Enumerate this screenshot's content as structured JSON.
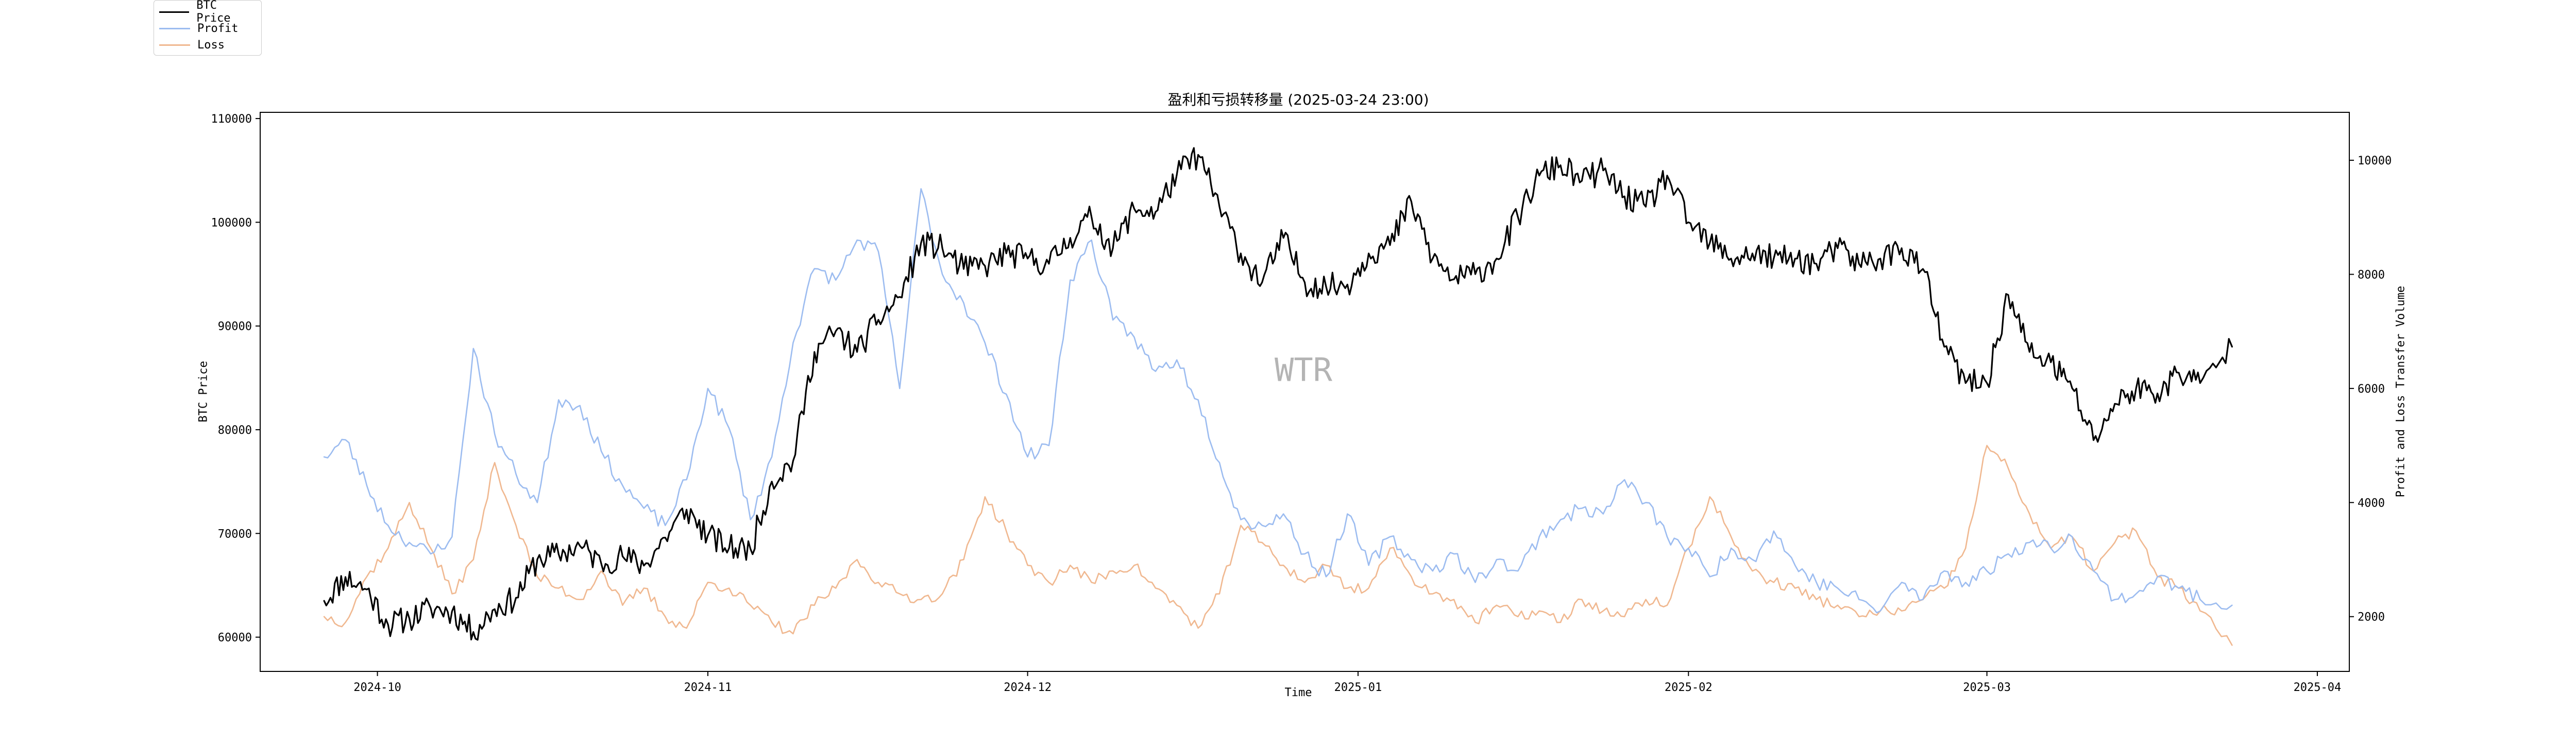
{
  "chart_data": {
    "type": "line",
    "title": "盈利和亏损转移量 (2025-03-24 23:00)",
    "xlabel": "Time",
    "ylabel_left": "BTC Price",
    "ylabel_right": "Profit and Loss Transfer Volume",
    "watermark": "WTR",
    "x_ticks": [
      "2024-10",
      "2024-11",
      "2024-12",
      "2025-01",
      "2025-02",
      "2025-03",
      "2025-04"
    ],
    "y_left_ticks": [
      "60000",
      "70000",
      "80000",
      "90000",
      "100000",
      "110000"
    ],
    "y_right_ticks": [
      "2000",
      "4000",
      "6000",
      "8000",
      "10000"
    ],
    "xlim": [
      "2024-09-20",
      "2025-04-04"
    ],
    "ylim_left": [
      56700,
      110600
    ],
    "ylim_right": [
      1040,
      10840
    ],
    "grid": false,
    "legend_position": "top-left",
    "series": [
      {
        "name": "BTC Price",
        "axis": "left",
        "color": "#000000",
        "x": [
          "2024-09-26",
          "2024-09-28",
          "2024-09-30",
          "2024-10-02",
          "2024-10-04",
          "2024-10-06",
          "2024-10-08",
          "2024-10-10",
          "2024-10-12",
          "2024-10-14",
          "2024-10-16",
          "2024-10-18",
          "2024-10-20",
          "2024-10-22",
          "2024-10-24",
          "2024-10-26",
          "2024-10-28",
          "2024-10-30",
          "2024-11-01",
          "2024-11-03",
          "2024-11-05",
          "2024-11-07",
          "2024-11-09",
          "2024-11-11",
          "2024-11-13",
          "2024-11-15",
          "2024-11-17",
          "2024-11-19",
          "2024-11-21",
          "2024-11-23",
          "2024-11-25",
          "2024-11-27",
          "2024-11-29",
          "2024-12-01",
          "2024-12-03",
          "2024-12-05",
          "2024-12-07",
          "2024-12-09",
          "2024-12-11",
          "2024-12-13",
          "2024-12-15",
          "2024-12-17",
          "2024-12-19",
          "2024-12-21",
          "2024-12-23",
          "2024-12-25",
          "2024-12-27",
          "2024-12-29",
          "2024-12-31",
          "2025-01-02",
          "2025-01-04",
          "2025-01-06",
          "2025-01-08",
          "2025-01-10",
          "2025-01-12",
          "2025-01-14",
          "2025-01-16",
          "2025-01-18",
          "2025-01-20",
          "2025-01-22",
          "2025-01-24",
          "2025-01-26",
          "2025-01-28",
          "2025-01-30",
          "2025-02-01",
          "2025-02-03",
          "2025-02-05",
          "2025-02-07",
          "2025-02-09",
          "2025-02-11",
          "2025-02-13",
          "2025-02-15",
          "2025-02-17",
          "2025-02-19",
          "2025-02-21",
          "2025-02-23",
          "2025-02-25",
          "2025-02-27",
          "2025-03-01",
          "2025-03-03",
          "2025-03-05",
          "2025-03-07",
          "2025-03-09",
          "2025-03-11",
          "2025-03-13",
          "2025-03-15",
          "2025-03-17",
          "2025-03-19",
          "2025-03-21",
          "2025-03-24"
        ],
        "values": [
          63500,
          65800,
          64600,
          61200,
          61800,
          62800,
          62500,
          60500,
          62700,
          63800,
          67500,
          68000,
          68800,
          67100,
          67800,
          66900,
          69600,
          72300,
          69800,
          68600,
          68500,
          75000,
          77000,
          87500,
          89500,
          87500,
          90600,
          92800,
          98000,
          97500,
          95500,
          95800,
          97000,
          96500,
          96000,
          98500,
          100500,
          97500,
          101300,
          101000,
          104600,
          106500,
          101500,
          97000,
          94200,
          98500,
          94200,
          93800,
          94000,
          97000,
          97800,
          102000,
          96500,
          94500,
          95000,
          96500,
          100500,
          104500,
          105500,
          104000,
          105000,
          102500,
          101500,
          104500,
          100000,
          98000,
          96500,
          97000,
          96500,
          96500,
          96000,
          97500,
          96000,
          96500,
          97500,
          95500,
          88000,
          84500,
          84500,
          93000,
          87500,
          86500,
          84000,
          79000,
          82500,
          84000,
          83500,
          85500,
          84500,
          88000
        ]
      },
      {
        "name": "Profit",
        "axis": "right",
        "color": "#9cbcf0",
        "x": [
          "2024-09-26",
          "2024-09-28",
          "2024-09-30",
          "2024-10-02",
          "2024-10-04",
          "2024-10-06",
          "2024-10-08",
          "2024-10-10",
          "2024-10-12",
          "2024-10-14",
          "2024-10-16",
          "2024-10-18",
          "2024-10-20",
          "2024-10-22",
          "2024-10-24",
          "2024-10-26",
          "2024-10-28",
          "2024-10-30",
          "2024-11-01",
          "2024-11-03",
          "2024-11-05",
          "2024-11-07",
          "2024-11-09",
          "2024-11-11",
          "2024-11-13",
          "2024-11-15",
          "2024-11-17",
          "2024-11-19",
          "2024-11-21",
          "2024-11-23",
          "2024-11-25",
          "2024-11-27",
          "2024-11-29",
          "2024-12-01",
          "2024-12-03",
          "2024-12-05",
          "2024-12-07",
          "2024-12-09",
          "2024-12-11",
          "2024-12-13",
          "2024-12-15",
          "2024-12-17",
          "2024-12-19",
          "2024-12-21",
          "2024-12-23",
          "2024-12-25",
          "2024-12-27",
          "2024-12-29",
          "2024-12-31",
          "2025-01-02",
          "2025-01-04",
          "2025-01-06",
          "2025-01-08",
          "2025-01-10",
          "2025-01-12",
          "2025-01-14",
          "2025-01-16",
          "2025-01-18",
          "2025-01-20",
          "2025-01-22",
          "2025-01-24",
          "2025-01-26",
          "2025-01-28",
          "2025-01-30",
          "2025-02-01",
          "2025-02-03",
          "2025-02-05",
          "2025-02-07",
          "2025-02-09",
          "2025-02-11",
          "2025-02-13",
          "2025-02-15",
          "2025-02-17",
          "2025-02-19",
          "2025-02-21",
          "2025-02-23",
          "2025-02-25",
          "2025-02-27",
          "2025-03-01",
          "2025-03-03",
          "2025-03-05",
          "2025-03-07",
          "2025-03-09",
          "2025-03-11",
          "2025-03-13",
          "2025-03-15",
          "2025-03-17",
          "2025-03-19",
          "2025-03-21",
          "2025-03-24"
        ],
        "values": [
          4800,
          5100,
          4300,
          3600,
          3300,
          3100,
          3400,
          6700,
          5200,
          4500,
          4000,
          5800,
          5700,
          4900,
          4300,
          3900,
          3600,
          4400,
          6000,
          5300,
          3700,
          4800,
          6800,
          8100,
          7900,
          8600,
          8400,
          6000,
          9500,
          8000,
          7500,
          6800,
          5900,
          4800,
          5000,
          7900,
          8600,
          7200,
          6900,
          6300,
          6500,
          5800,
          4700,
          3700,
          3600,
          3800,
          3100,
          2700,
          3800,
          2900,
          3400,
          3000,
          2800,
          3100,
          2600,
          3000,
          2800,
          3400,
          3700,
          3900,
          3800,
          4400,
          4000,
          3400,
          3200,
          2700,
          3200,
          3000,
          3500,
          2900,
          2600,
          2500,
          2300,
          2100,
          2600,
          2300,
          2800,
          2600,
          2800,
          3100,
          3300,
          3200,
          3400,
          2800,
          2300,
          2400,
          2700,
          2500,
          2300,
          2200
        ]
      },
      {
        "name": "Loss",
        "axis": "right",
        "color": "#f0b890",
        "x": [
          "2024-09-26",
          "2024-09-28",
          "2024-09-30",
          "2024-10-02",
          "2024-10-04",
          "2024-10-06",
          "2024-10-08",
          "2024-10-10",
          "2024-10-12",
          "2024-10-14",
          "2024-10-16",
          "2024-10-18",
          "2024-10-20",
          "2024-10-22",
          "2024-10-24",
          "2024-10-26",
          "2024-10-28",
          "2024-10-30",
          "2024-11-01",
          "2024-11-03",
          "2024-11-05",
          "2024-11-07",
          "2024-11-09",
          "2024-11-11",
          "2024-11-13",
          "2024-11-15",
          "2024-11-17",
          "2024-11-19",
          "2024-11-21",
          "2024-11-23",
          "2024-11-25",
          "2024-11-27",
          "2024-11-29",
          "2024-12-01",
          "2024-12-03",
          "2024-12-05",
          "2024-12-07",
          "2024-12-09",
          "2024-12-11",
          "2024-12-13",
          "2024-12-15",
          "2024-12-17",
          "2024-12-19",
          "2024-12-21",
          "2024-12-23",
          "2024-12-25",
          "2024-12-27",
          "2024-12-29",
          "2024-12-31",
          "2025-01-02",
          "2025-01-04",
          "2025-01-06",
          "2025-01-08",
          "2025-01-10",
          "2025-01-12",
          "2025-01-14",
          "2025-01-16",
          "2025-01-18",
          "2025-01-20",
          "2025-01-22",
          "2025-01-24",
          "2025-01-26",
          "2025-01-28",
          "2025-01-30",
          "2025-02-01",
          "2025-02-03",
          "2025-02-05",
          "2025-02-07",
          "2025-02-09",
          "2025-02-11",
          "2025-02-13",
          "2025-02-15",
          "2025-02-17",
          "2025-02-19",
          "2025-02-21",
          "2025-02-23",
          "2025-02-25",
          "2025-02-27",
          "2025-03-01",
          "2025-03-03",
          "2025-03-05",
          "2025-03-07",
          "2025-03-09",
          "2025-03-11",
          "2025-03-13",
          "2025-03-15",
          "2025-03-17",
          "2025-03-19",
          "2025-03-21",
          "2025-03-24"
        ],
        "values": [
          2000,
          1900,
          2700,
          3200,
          4000,
          3200,
          2400,
          3000,
          4700,
          3600,
          2700,
          2500,
          2300,
          2800,
          2200,
          2500,
          2000,
          1800,
          2600,
          2500,
          2200,
          1900,
          1700,
          2200,
          2500,
          3000,
          2600,
          2400,
          2300,
          2400,
          3000,
          4100,
          3500,
          2900,
          2600,
          2900,
          2600,
          2800,
          2900,
          2500,
          2200,
          1800,
          2400,
          3600,
          3300,
          2900,
          2600,
          2900,
          2500,
          2500,
          3200,
          2700,
          2400,
          2300,
          1900,
          2200,
          2000,
          2100,
          1900,
          2300,
          2100,
          2000,
          2300,
          2200,
          3200,
          4100,
          3400,
          2800,
          2600,
          2500,
          2300,
          2200,
          2000,
          2100,
          2100,
          2300,
          2500,
          3200,
          5000,
          4600,
          3800,
          3200,
          3400,
          2800,
          3300,
          3500,
          2700,
          2500,
          2100,
          1500
        ]
      }
    ]
  }
}
